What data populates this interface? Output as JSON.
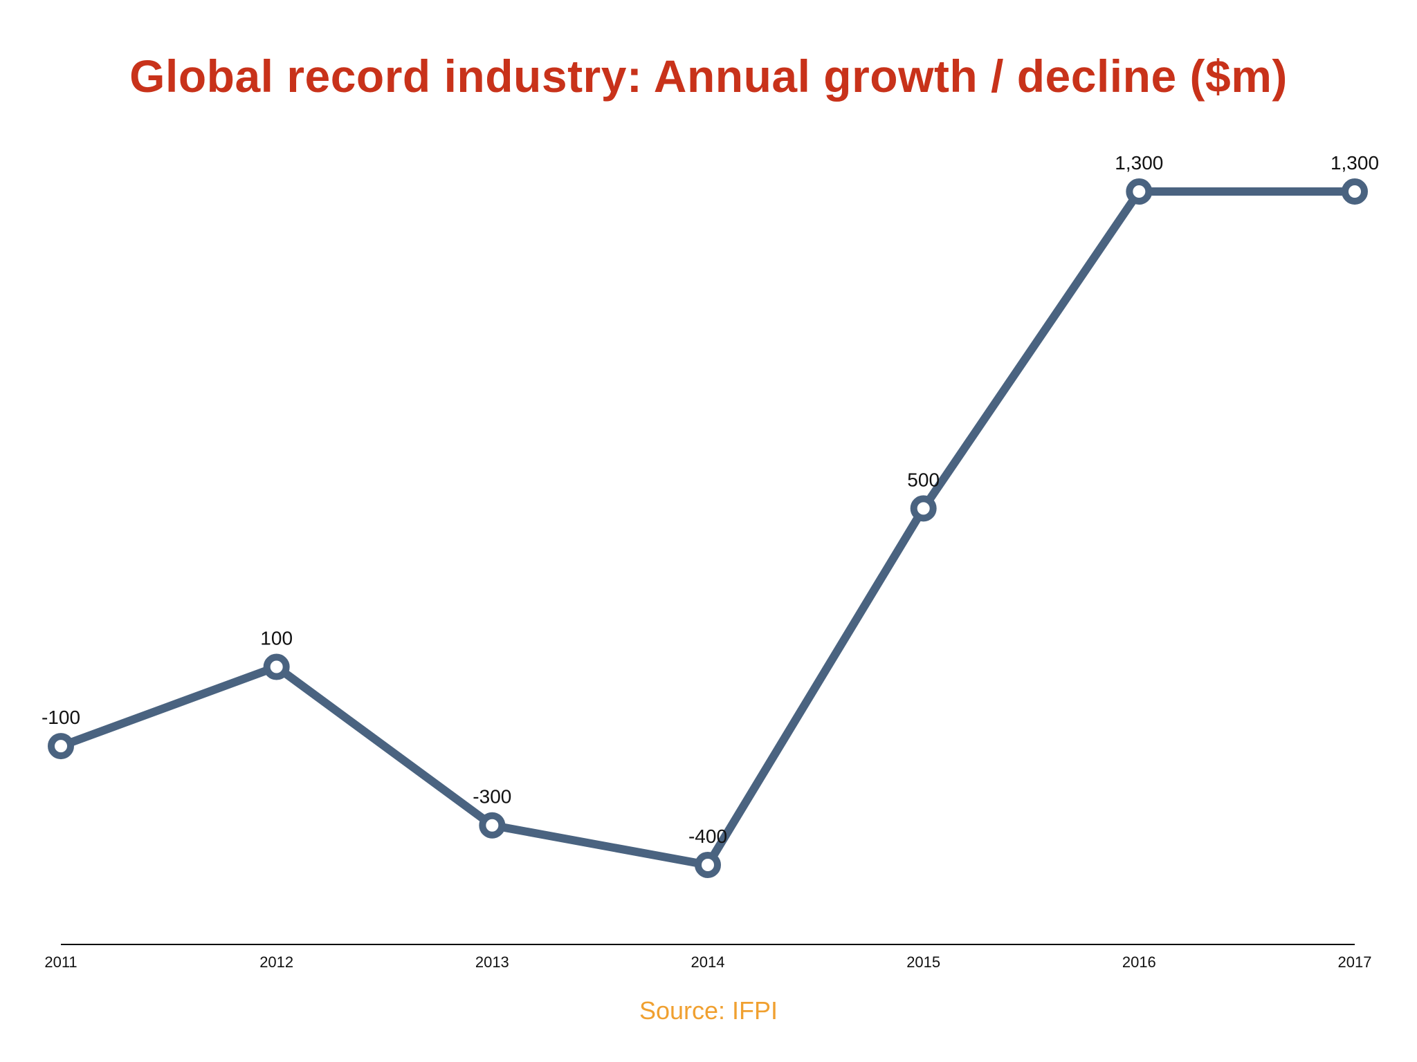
{
  "chart_data": {
    "type": "line",
    "title": "Global record industry: Annual growth / decline ($m)",
    "categories": [
      "2011",
      "2012",
      "2013",
      "2014",
      "2015",
      "2016",
      "2017"
    ],
    "series": [
      {
        "values": [
          -100,
          100,
          -300,
          -400,
          500,
          1300,
          1300
        ],
        "labels": [
          "-100",
          "100",
          "-300",
          "-400",
          "500",
          "1,300",
          "1,300"
        ]
      }
    ],
    "xlabel": "",
    "ylabel": "",
    "grid": false,
    "legend": "none"
  },
  "source": "Source: IFPI",
  "colors": {
    "title": "#c8321a",
    "line": "#4a6380",
    "marker_fill": "#ffffff",
    "source": "#f0a030",
    "axis": "#000000"
  }
}
